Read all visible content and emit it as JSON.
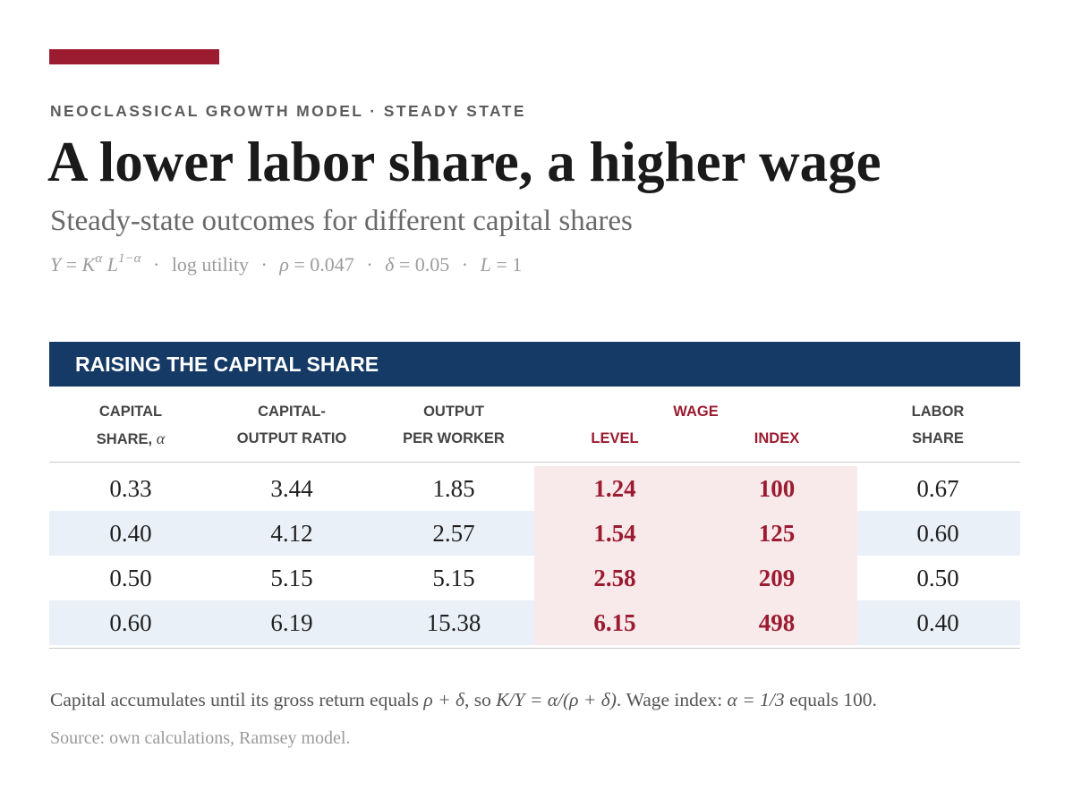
{
  "kicker": "NEOCLASSICAL GROWTH MODEL · STEADY STATE",
  "title": "A lower labor share, a higher wage",
  "subtitle": "Steady-state outcomes for different capital shares",
  "formula": {
    "production_Y": "Y",
    "production_eq": "=",
    "production_K": "K",
    "production_alpha": "α",
    "production_L": "L",
    "production_exp": "1−α",
    "utility": "log utility",
    "rho_symbol": "ρ",
    "rho_value": "= 0.047",
    "delta_symbol": "δ",
    "delta_value": "= 0.05",
    "L_symbol": "L",
    "L_value": "= 1",
    "separator": "·"
  },
  "panel_title": "RAISING THE CAPITAL SHARE",
  "columns": {
    "capital_share_line1": "CAPITAL",
    "capital_share_line2": "SHARE,",
    "capital_share_symbol": "α",
    "ratio_line1": "CAPITAL-",
    "ratio_line2": "OUTPUT RATIO",
    "output_line1": "OUTPUT",
    "output_line2": "PER WORKER",
    "wage_group": "WAGE",
    "wage_level": "LEVEL",
    "wage_index": "INDEX",
    "labor_line1": "LABOR",
    "labor_line2": "SHARE"
  },
  "rows": [
    {
      "alpha": "0.33",
      "ky": "3.44",
      "y": "1.85",
      "wage": "1.24",
      "index": "100",
      "labor": "0.67"
    },
    {
      "alpha": "0.40",
      "ky": "4.12",
      "y": "2.57",
      "wage": "1.54",
      "index": "125",
      "labor": "0.60"
    },
    {
      "alpha": "0.50",
      "ky": "5.15",
      "y": "5.15",
      "wage": "2.58",
      "index": "209",
      "labor": "0.50"
    },
    {
      "alpha": "0.60",
      "ky": "6.19",
      "y": "15.38",
      "wage": "6.15",
      "index": "498",
      "labor": "0.40"
    }
  ],
  "note": {
    "text1": "Capital accumulates until its gross return equals ",
    "math1": "ρ + δ",
    "text2": ", so ",
    "math2": "K/Y = α/(ρ + δ)",
    "text3": ". Wage index: ",
    "math3": "α = 1/3",
    "text4": " equals 100."
  },
  "source": "Source: own calculations, Ramsey model.",
  "colors": {
    "accent": "#9b1b30",
    "header_bg": "#153a66",
    "alt_row": "#eaf0f7",
    "wage_band": "#f8e9eb"
  }
}
